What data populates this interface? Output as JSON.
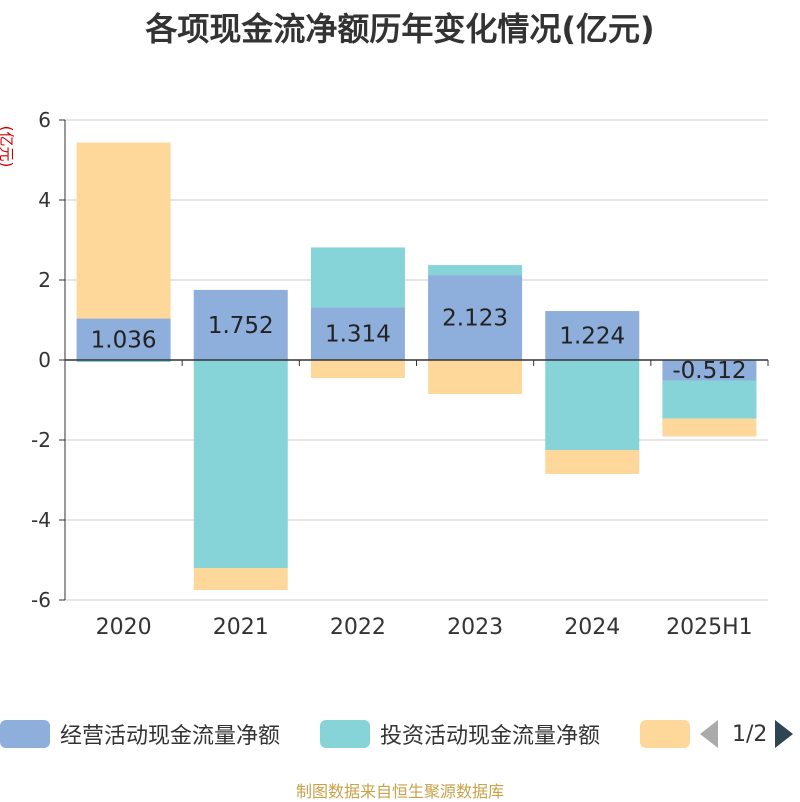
{
  "title": "各项现金流净额历年变化情况(亿元)",
  "source": "制图数据来自恒生聚源数据库",
  "pager": {
    "text": "1/2"
  },
  "legend": [
    {
      "label": "经营活动现金流量净额",
      "color": "#8eaedb"
    },
    {
      "label": "投资活动现金流量净额",
      "color": "#86d4d8"
    },
    {
      "label": "",
      "color": "#fdd89a"
    }
  ],
  "chart_data": {
    "type": "bar",
    "stacked": true,
    "ylabel": "(亿元)",
    "ylim": [
      -6,
      6
    ],
    "yticks": [
      6,
      4,
      2,
      0,
      -2,
      -4,
      -6
    ],
    "grid": true,
    "categories": [
      "2020",
      "2021",
      "2022",
      "2023",
      "2024",
      "2025H1"
    ],
    "series": [
      {
        "name": "经营活动现金流量净额",
        "color": "#8eaedb",
        "values": [
          1.036,
          1.752,
          1.314,
          2.123,
          1.224,
          -0.512
        ],
        "labels": [
          "1.036",
          "1.752",
          "1.314",
          "2.123",
          "1.224",
          "-0.512"
        ]
      },
      {
        "name": "投资活动现金流量净额",
        "color": "#86d4d8",
        "values": [
          -0.05,
          -5.2,
          1.5,
          0.25,
          -2.25,
          -0.95
        ]
      },
      {
        "color": "#fdd89a",
        "values": [
          4.4,
          -0.55,
          -0.45,
          -0.85,
          -0.6,
          -0.45
        ]
      }
    ]
  }
}
